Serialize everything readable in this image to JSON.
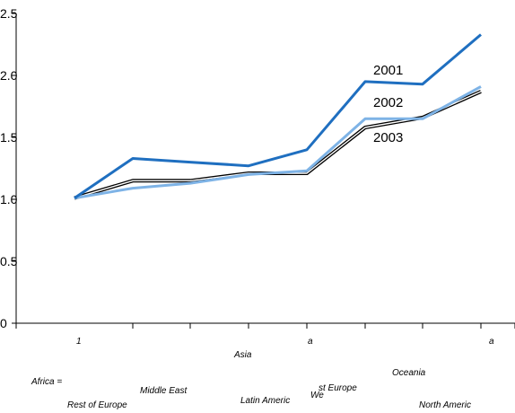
{
  "chart_data": {
    "type": "line",
    "categories": [
      "Africa",
      "Rest of Europe",
      "Middle East",
      "Asia",
      "Latin America",
      "Western Europe",
      "Oceania",
      "North America"
    ],
    "series": [
      {
        "name": "2001",
        "color": "#1f6fc0",
        "values": [
          1.01,
          1.33,
          1.3,
          1.27,
          1.4,
          1.95,
          1.93,
          2.33
        ]
      },
      {
        "name": "2002",
        "color": "#7eb3e6",
        "values": [
          1.01,
          1.09,
          1.13,
          1.2,
          1.23,
          1.65,
          1.65,
          1.91
        ]
      },
      {
        "name": "2003",
        "color": "#000000",
        "values": [
          1.01,
          1.15,
          1.15,
          1.21,
          1.21,
          1.58,
          1.66,
          1.87
        ]
      }
    ],
    "ylim": [
      0,
      2.5
    ],
    "yticks": [
      "0",
      "0.5",
      "1.0",
      "1.5",
      "2.0",
      "2.5"
    ],
    "grid": false,
    "x_tick_texts": [
      "1",
      "a",
      "a"
    ],
    "category_texts": [
      "Africa =",
      "Rest of Europe",
      "Middle East",
      "Asia",
      "Latin Americ",
      "We",
      "st Europe",
      "Oceania",
      "North Americ"
    ]
  }
}
